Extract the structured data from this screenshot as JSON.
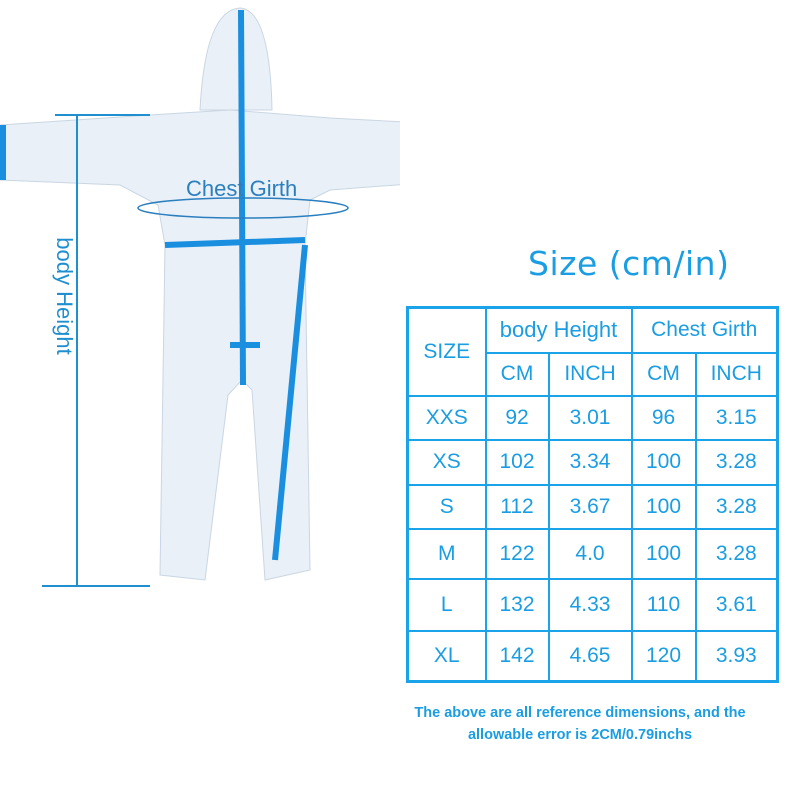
{
  "figure": {
    "body_height_label": "body Height",
    "chest_girth_label": "Chest Girth",
    "accent_color": "#1a9de2"
  },
  "title": "Size (cm/in)",
  "table": {
    "size_header": "SIZE",
    "groups": [
      "body Height",
      "Chest Girth"
    ],
    "units": [
      "CM",
      "INCH",
      "CM",
      "INCH"
    ],
    "rows": [
      [
        "XXS",
        "92",
        "3.01",
        "96",
        "3.15"
      ],
      [
        "XS",
        "102",
        "3.34",
        "100",
        "3.28"
      ],
      [
        "S",
        "112",
        "3.67",
        "100",
        "3.28"
      ],
      [
        "M",
        "122",
        "4.0",
        "100",
        "3.28"
      ],
      [
        "L",
        "132",
        "4.33",
        "110",
        "3.61"
      ],
      [
        "XL",
        "142",
        "4.65",
        "120",
        "3.93"
      ]
    ]
  },
  "note": "The above are all reference dimensions, and the allowable error is 2CM/0.79inchs"
}
